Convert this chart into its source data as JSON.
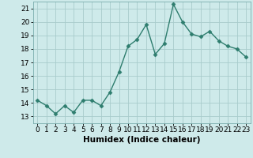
{
  "x": [
    0,
    1,
    2,
    3,
    4,
    5,
    6,
    7,
    8,
    9,
    10,
    11,
    12,
    13,
    14,
    15,
    16,
    17,
    18,
    19,
    20,
    21,
    22,
    23
  ],
  "y": [
    14.2,
    13.8,
    13.2,
    13.8,
    13.3,
    14.2,
    14.2,
    13.8,
    14.8,
    16.3,
    18.2,
    18.7,
    19.8,
    17.6,
    18.4,
    21.3,
    20.0,
    19.1,
    18.9,
    19.3,
    18.6,
    18.2,
    18.0,
    17.4
  ],
  "line_color": "#2e7d6e",
  "marker": "D",
  "marker_size": 2.5,
  "bg_color": "#ceeaea",
  "grid_color": "#a8cccc",
  "xlabel": "Humidex (Indice chaleur)",
  "ylim": [
    12.5,
    21.5
  ],
  "xlim": [
    -0.5,
    23.5
  ],
  "yticks": [
    13,
    14,
    15,
    16,
    17,
    18,
    19,
    20,
    21
  ],
  "xticks": [
    0,
    1,
    2,
    3,
    4,
    5,
    6,
    7,
    8,
    9,
    10,
    11,
    12,
    13,
    14,
    15,
    16,
    17,
    18,
    19,
    20,
    21,
    22,
    23
  ],
  "tick_fontsize": 6.5,
  "xlabel_fontsize": 7.5,
  "line_width": 1.0
}
